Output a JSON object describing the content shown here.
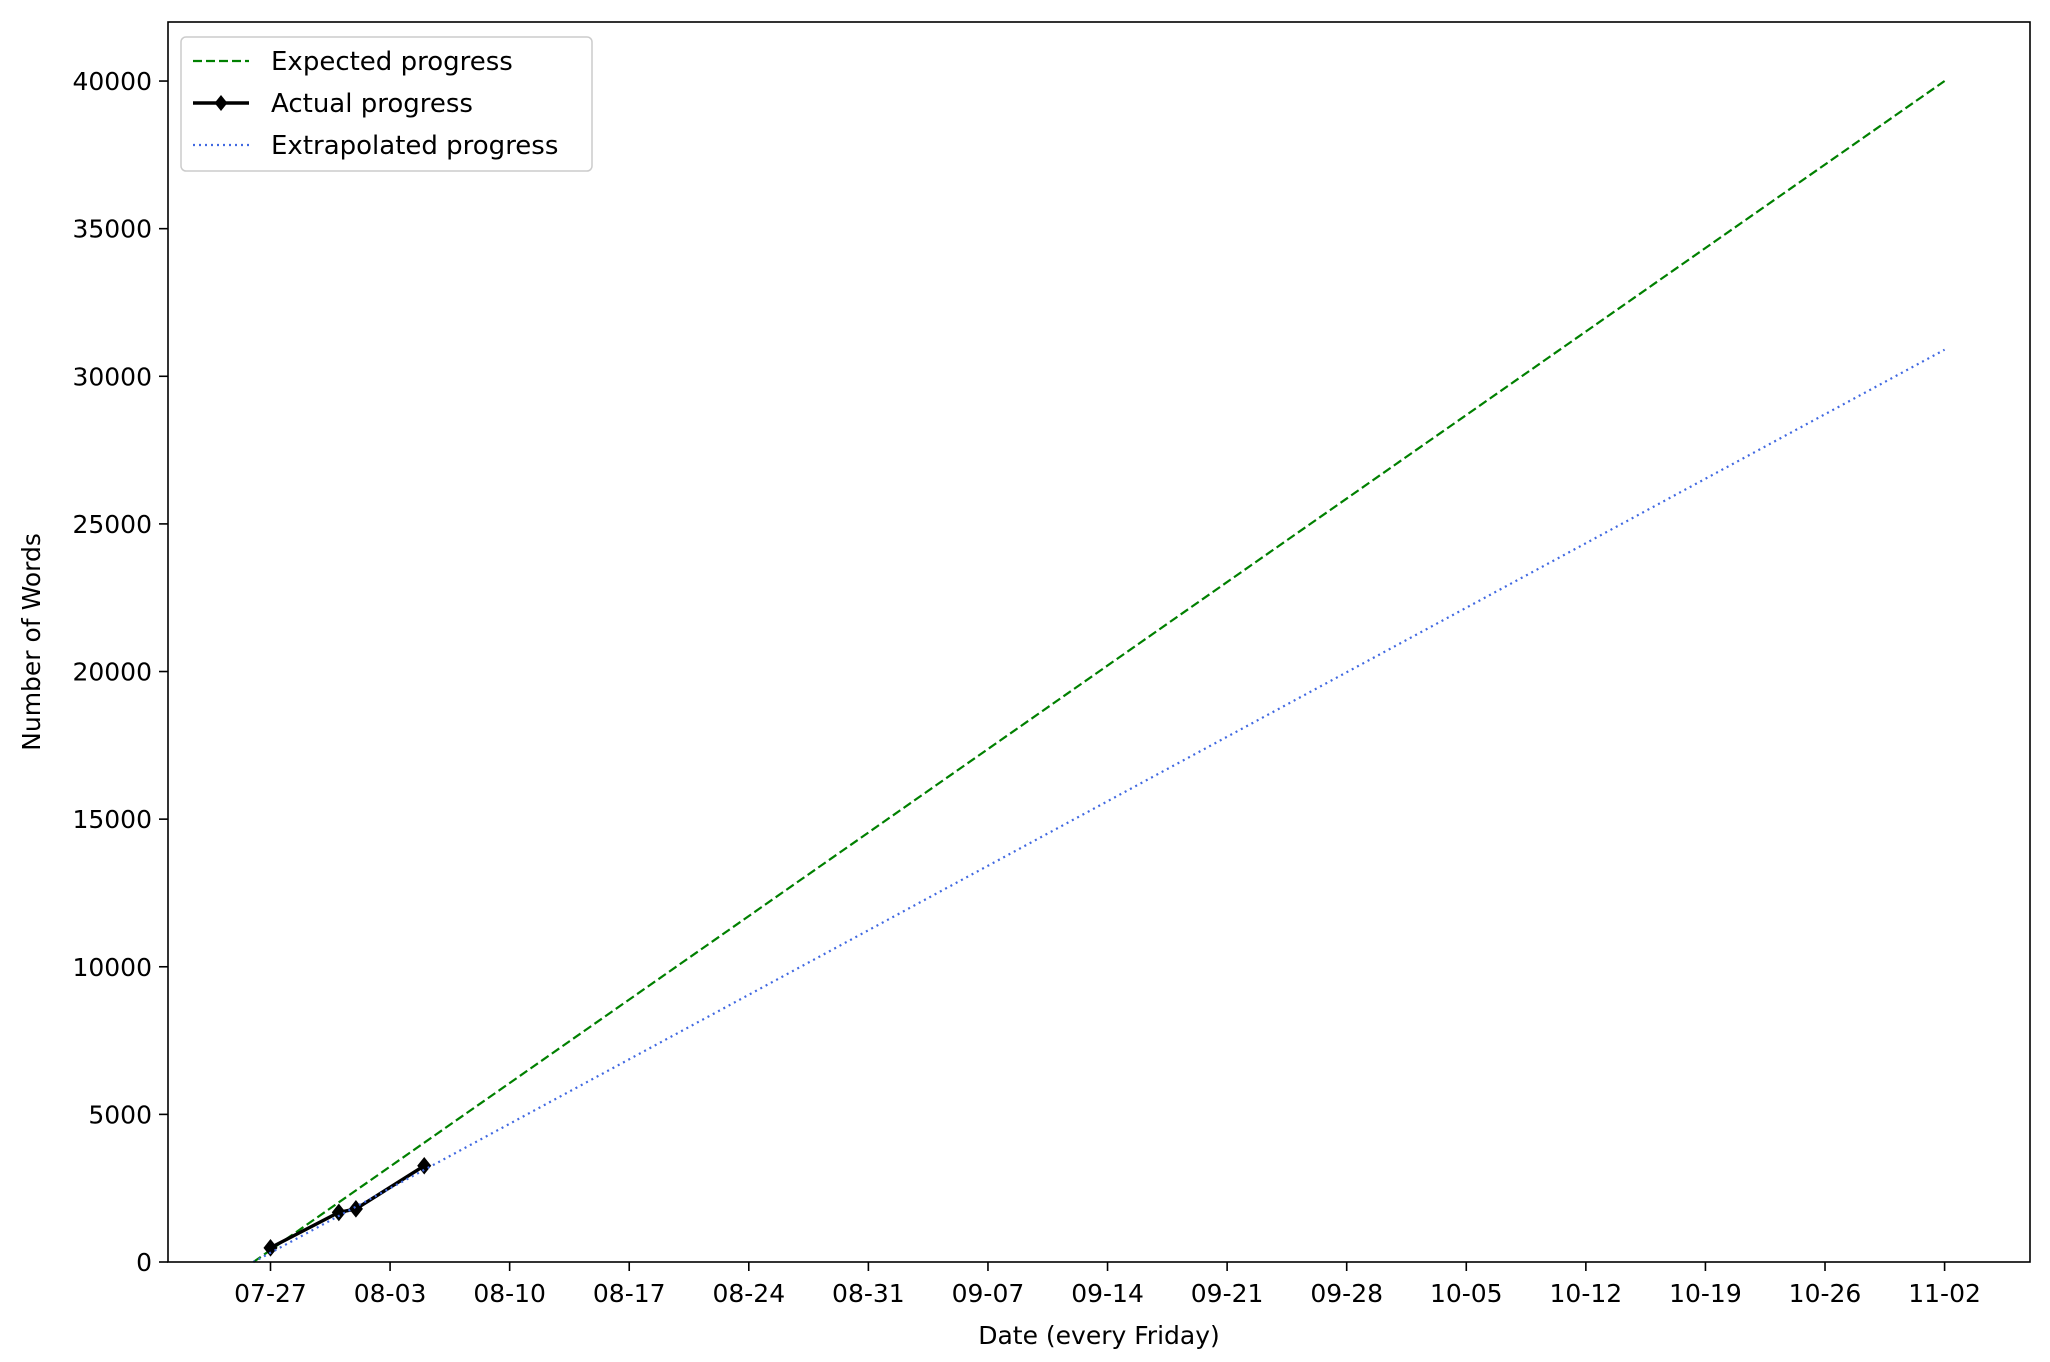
{
  "chart_data": {
    "type": "line",
    "title": "",
    "xlabel": "Date (every Friday)",
    "ylabel": "Number of Words",
    "x_ticks": [
      "07-27",
      "08-03",
      "08-10",
      "08-17",
      "08-24",
      "08-31",
      "09-07",
      "09-14",
      "09-21",
      "09-28",
      "10-05",
      "10-12",
      "10-19",
      "10-26",
      "11-02"
    ],
    "x_tick_dates": [
      "2018-07-27",
      "2018-08-03",
      "2018-08-10",
      "2018-08-17",
      "2018-08-24",
      "2018-08-31",
      "2018-09-07",
      "2018-09-14",
      "2018-09-21",
      "2018-09-28",
      "2018-10-05",
      "2018-10-12",
      "2018-10-19",
      "2018-10-26",
      "2018-11-02"
    ],
    "y_ticks": [
      0,
      5000,
      10000,
      15000,
      20000,
      25000,
      30000,
      35000,
      40000
    ],
    "y_tick_labels": [
      "0",
      "5000",
      "10000",
      "15000",
      "20000",
      "25000",
      "30000",
      "35000",
      "40000"
    ],
    "xlim": [
      "2018-07-21",
      "2018-11-07"
    ],
    "ylim": [
      0,
      42000
    ],
    "grid": false,
    "legend_position": "top-left",
    "series": [
      {
        "name": "Expected progress",
        "style": "dashed",
        "color": "#008000",
        "marker": "none",
        "points": [
          {
            "x": "2018-07-26",
            "y": 0
          },
          {
            "x": "2018-11-02",
            "y": 40000
          }
        ]
      },
      {
        "name": "Actual progress",
        "style": "solid",
        "color": "#000000",
        "marker": "diamond",
        "points": [
          {
            "x": "2018-07-27",
            "y": 480
          },
          {
            "x": "2018-07-31",
            "y": 1680
          },
          {
            "x": "2018-08-01",
            "y": 1800
          },
          {
            "x": "2018-08-05",
            "y": 3260
          }
        ]
      },
      {
        "name": "Extrapolated progress",
        "style": "dotted",
        "color": "#4169e1",
        "marker": "none",
        "points": [
          {
            "x": "2018-07-26",
            "y": 0
          },
          {
            "x": "2018-11-02",
            "y": 30900
          }
        ]
      }
    ]
  }
}
